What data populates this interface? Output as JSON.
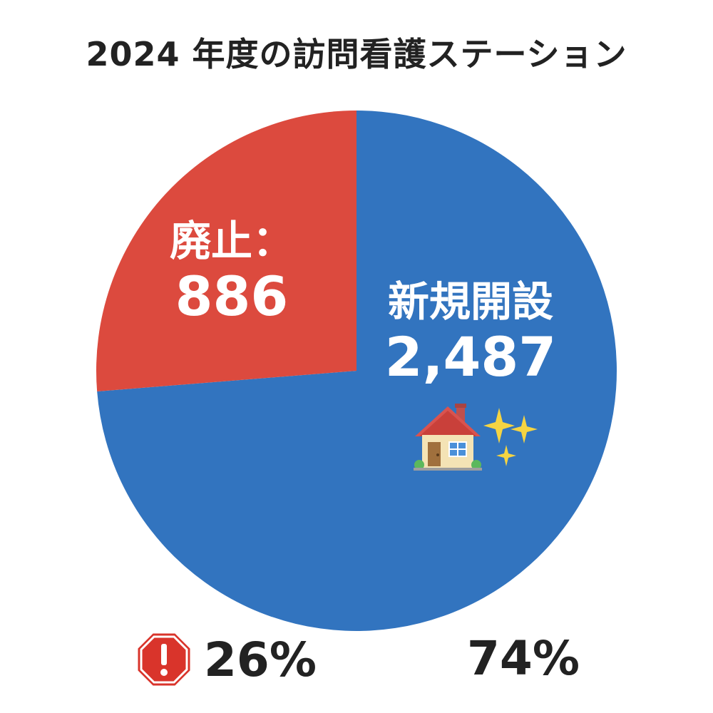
{
  "chart_data": {
    "type": "pie",
    "title": "2024 年度の訪問看護ステーション",
    "slices": [
      {
        "label": "新規開設",
        "value": 2487,
        "value_label": "2,487",
        "percent_label": "74%",
        "color": "#3274bf",
        "icon": "house-sparkles-icon"
      },
      {
        "label": "廃止：",
        "value": 886,
        "value_label": "886",
        "percent_label": "26%",
        "color": "#dc4a3e",
        "icon": "warning-octagon-icon"
      }
    ]
  }
}
